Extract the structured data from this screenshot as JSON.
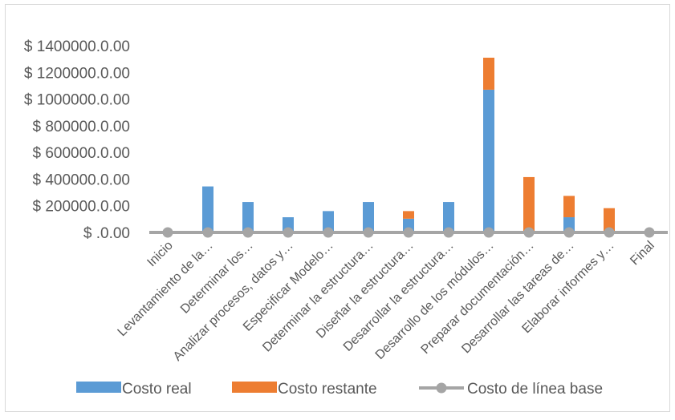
{
  "chart_data": {
    "type": "bar",
    "stacked": true,
    "categories": [
      "Inicio",
      "Levantamiento de la…",
      "Determinar los…",
      "Analizar procesos, datos y…",
      "Especificar Modelo…",
      "Determinar la estructura…",
      "Diseñar  la estructura…",
      "Desarrollar la estructura…",
      "Desarrollo de los módulos…",
      "Preparar documentación…",
      "Desarrollar las tareas de…",
      "Elaborar informes y…",
      "Final"
    ],
    "series": [
      {
        "name": "Costo real",
        "type": "bar",
        "color": "#5B9BD5",
        "values": [
          0,
          345000,
          228000,
          114000,
          160000,
          228000,
          103000,
          228000,
          1070000,
          0,
          114000,
          0,
          0
        ]
      },
      {
        "name": "Costo restante",
        "type": "bar",
        "color": "#ED7D31",
        "values": [
          0,
          0,
          0,
          0,
          0,
          0,
          57000,
          0,
          240000,
          415000,
          160000,
          182000,
          0
        ]
      },
      {
        "name": "Costo de línea base",
        "type": "line",
        "color": "#A5A5A5",
        "values": [
          0,
          0,
          0,
          0,
          0,
          0,
          0,
          0,
          0,
          0,
          0,
          0,
          0
        ]
      }
    ],
    "y_ticks": [
      "$ .0.00",
      "$ 200000.0.00",
      "$ 400000.0.00",
      "$ 600000.0.00",
      "$ 800000.0.00",
      "$ 1000000.0.00",
      "$ 1200000.0.00",
      "$ 1400000.0.00"
    ],
    "ylim": [
      0,
      1400000
    ],
    "grid": false,
    "legend_position": "bottom"
  }
}
